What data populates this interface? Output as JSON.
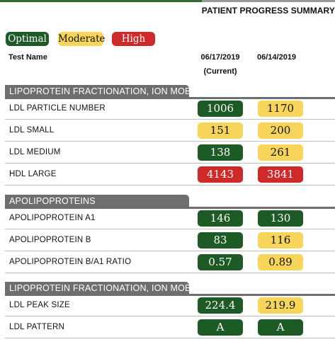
{
  "header": {
    "title": "PATIENT PROGRESS SUMMARY"
  },
  "legend": {
    "optimal": "Optimal",
    "moderate": "Moderate",
    "high": "High"
  },
  "columns": {
    "test": "Test Name",
    "date1": "06/17/2019",
    "date1_sub": "(Current)",
    "date2": "06/14/2019"
  },
  "status_colors": {
    "optimal": "#1e5a26",
    "moderate": "#f6d55a",
    "high": "#cf2a2a"
  },
  "sections": [
    {
      "title": "LIPOPROTEIN FRACTIONATION, ION MOBILITY",
      "rows": [
        {
          "label": "LDL PARTICLE NUMBER",
          "v1": "1006",
          "s1": "optimal",
          "v2": "1170",
          "s2": "moderate"
        },
        {
          "label": "LDL SMALL",
          "v1": "151",
          "s1": "moderate",
          "v2": "200",
          "s2": "moderate"
        },
        {
          "label": "LDL MEDIUM",
          "v1": "138",
          "s1": "optimal",
          "v2": "261",
          "s2": "moderate"
        },
        {
          "label": "HDL LARGE",
          "v1": "4143",
          "s1": "high",
          "v2": "3841",
          "s2": "high"
        }
      ]
    },
    {
      "title": "APOLIPOPROTEINS",
      "rows": [
        {
          "label": "APOLIPOPROTEIN A1",
          "v1": "146",
          "s1": "optimal",
          "v2": "130",
          "s2": "optimal"
        },
        {
          "label": "APOLIPOPROTEIN B",
          "v1": "83",
          "s1": "optimal",
          "v2": "116",
          "s2": "moderate"
        },
        {
          "label": "APOLIPOPROTEIN B/A1 RATIO",
          "v1": "0.57",
          "s1": "optimal",
          "v2": "0.89",
          "s2": "moderate"
        }
      ]
    },
    {
      "title": "LIPOPROTEIN FRACTIONATION, ION MOBILITY",
      "rows": [
        {
          "label": "LDL PEAK SIZE",
          "v1": "224.4",
          "s1": "optimal",
          "v2": "219.9",
          "s2": "moderate"
        },
        {
          "label": "LDL PATTERN",
          "v1": "A",
          "s1": "optimal",
          "v2": "A",
          "s2": "optimal"
        }
      ]
    }
  ]
}
